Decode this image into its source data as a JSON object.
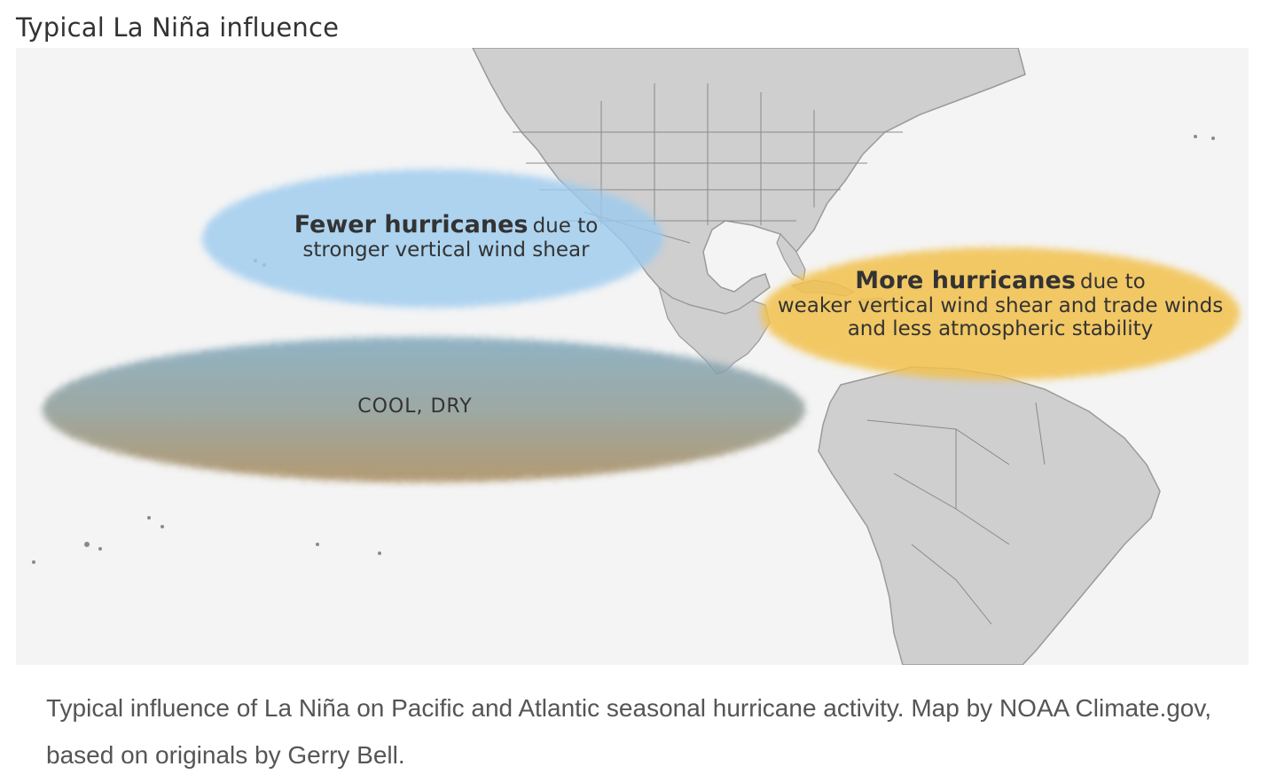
{
  "figure": {
    "title": "Typical La Niña influence",
    "caption": "Typical influence of La Niña on Pacific and Atlantic seasonal hurricane activity. Map by NOAA Climate.gov, based on originals by Gerry Bell."
  },
  "regions": {
    "pacific_hurricanes": {
      "headline": "Fewer hurricanes",
      "headline_suffix": "due to",
      "detail": "stronger vertical wind shear",
      "color": "#9ccbef"
    },
    "atlantic_hurricanes": {
      "headline": "More hurricanes",
      "headline_suffix": "due to",
      "detail_line1": "weaker vertical wind shear and trade winds",
      "detail_line2": "and less atmospheric stability",
      "color": "#f2c14e"
    },
    "equatorial_pacific": {
      "label": "COOL, DRY",
      "color_top": "#7fa8bd",
      "color_bottom": "#a88a5a"
    }
  },
  "map_colors": {
    "ocean": "#f4f4f4",
    "land": "#cfcfcf",
    "borders": "#8a8a8a"
  }
}
